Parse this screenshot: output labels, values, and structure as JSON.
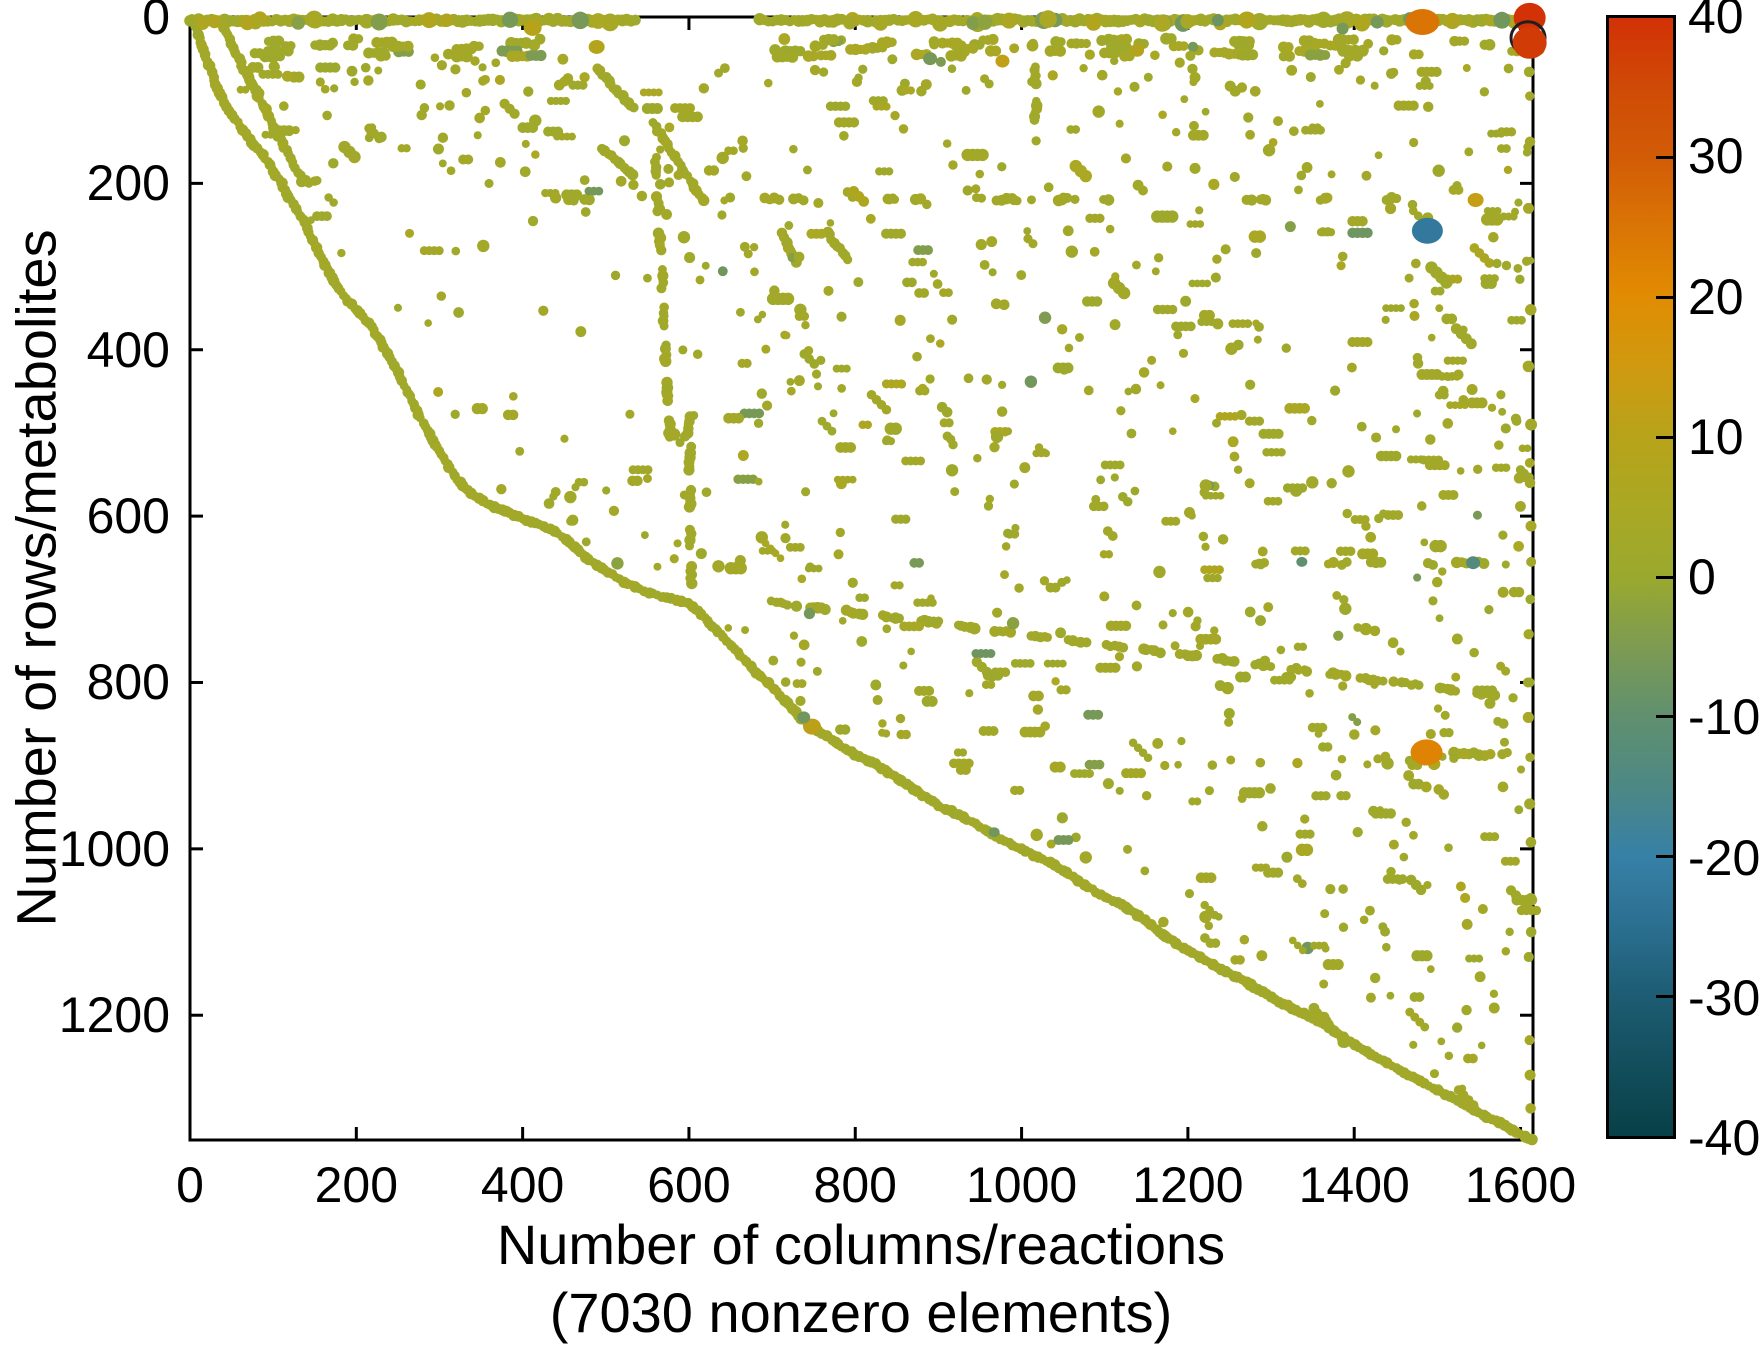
{
  "figure": {
    "background": "#ffffff",
    "axis_color": "#000000"
  },
  "chart_data": {
    "type": "scatter",
    "subtype": "sparse-matrix-spy-plot",
    "title": "",
    "xlabel": "Number of columns/reactions",
    "xlabel_note": "(7030 nonzero elements)",
    "ylabel": "Number of rows/metabolites",
    "nonzero_elements": 7030,
    "xlim": [
      0,
      1615
    ],
    "ylim": [
      0,
      1350
    ],
    "y_inverted": true,
    "grid": false,
    "xticks": [
      0,
      200,
      400,
      600,
      800,
      1000,
      1200,
      1400,
      1600
    ],
    "yticks": [
      0,
      200,
      400,
      600,
      800,
      1000,
      1200
    ],
    "marker_color_default": "#a2ae33",
    "colorbar": {
      "min": -40,
      "max": 40,
      "ticks": [
        40,
        30,
        20,
        10,
        0,
        -10,
        -20,
        -30,
        -40
      ],
      "stops": [
        [
          40,
          "#d33106"
        ],
        [
          35,
          "#cf4a06"
        ],
        [
          30,
          "#d25c06"
        ],
        [
          25,
          "#da7505"
        ],
        [
          20,
          "#e18c02"
        ],
        [
          15,
          "#cf9a10"
        ],
        [
          10,
          "#b7a31a"
        ],
        [
          5,
          "#aaa824"
        ],
        [
          0,
          "#9aa92e"
        ],
        [
          -5,
          "#7d9b52"
        ],
        [
          -10,
          "#60906f"
        ],
        [
          -15,
          "#4d8884"
        ],
        [
          -20,
          "#3780a6"
        ],
        [
          -25,
          "#2b6f90"
        ],
        [
          -30,
          "#1d5c72"
        ],
        [
          -35,
          "#124e5c"
        ],
        [
          -40,
          "#084047"
        ]
      ]
    },
    "main_diagonal_curve": [
      [
        2,
        2
      ],
      [
        6,
        12
      ],
      [
        10,
        22
      ],
      [
        14,
        34
      ],
      [
        18,
        45
      ],
      [
        23,
        58
      ],
      [
        28,
        72
      ],
      [
        33,
        85
      ],
      [
        38,
        96
      ],
      [
        44,
        108
      ],
      [
        50,
        117
      ],
      [
        57,
        127
      ],
      [
        64,
        136
      ],
      [
        72,
        147
      ],
      [
        80,
        158
      ],
      [
        88,
        166
      ],
      [
        96,
        178
      ],
      [
        103,
        190
      ],
      [
        110,
        200
      ],
      [
        118,
        216
      ],
      [
        128,
        230
      ],
      [
        138,
        248
      ],
      [
        148,
        268
      ],
      [
        158,
        288
      ],
      [
        168,
        308
      ],
      [
        178,
        326
      ],
      [
        190,
        342
      ],
      [
        205,
        357
      ],
      [
        218,
        372
      ],
      [
        228,
        388
      ],
      [
        238,
        405
      ],
      [
        250,
        428
      ],
      [
        262,
        452
      ],
      [
        275,
        478
      ],
      [
        288,
        502
      ],
      [
        300,
        522
      ],
      [
        312,
        542
      ],
      [
        325,
        560
      ],
      [
        338,
        572
      ],
      [
        352,
        582
      ],
      [
        366,
        589
      ],
      [
        380,
        594
      ],
      [
        395,
        601
      ],
      [
        410,
        607
      ],
      [
        425,
        612
      ],
      [
        438,
        618
      ],
      [
        452,
        628
      ],
      [
        466,
        640
      ],
      [
        480,
        652
      ],
      [
        494,
        662
      ],
      [
        508,
        670
      ],
      [
        522,
        679
      ],
      [
        536,
        686
      ],
      [
        552,
        692
      ],
      [
        568,
        697
      ],
      [
        585,
        701
      ],
      [
        600,
        705
      ],
      [
        615,
        718
      ],
      [
        635,
        739
      ],
      [
        655,
        760
      ],
      [
        675,
        781
      ],
      [
        695,
        801
      ],
      [
        715,
        822
      ],
      [
        735,
        843
      ],
      [
        750,
        855
      ],
      [
        765,
        864
      ],
      [
        780,
        874
      ],
      [
        795,
        884
      ],
      [
        810,
        891
      ],
      [
        825,
        898
      ],
      [
        840,
        908
      ],
      [
        855,
        918
      ],
      [
        870,
        928
      ],
      [
        885,
        938
      ],
      [
        900,
        948
      ],
      [
        915,
        955
      ],
      [
        930,
        962
      ],
      [
        945,
        970
      ],
      [
        960,
        979
      ],
      [
        975,
        988
      ],
      [
        990,
        996
      ],
      [
        1005,
        1003
      ],
      [
        1020,
        1010
      ],
      [
        1035,
        1017
      ],
      [
        1050,
        1026
      ],
      [
        1065,
        1036
      ],
      [
        1080,
        1046
      ],
      [
        1095,
        1055
      ],
      [
        1110,
        1062
      ],
      [
        1125,
        1070
      ],
      [
        1140,
        1080
      ],
      [
        1155,
        1092
      ],
      [
        1170,
        1103
      ],
      [
        1185,
        1113
      ],
      [
        1200,
        1122
      ],
      [
        1215,
        1131
      ],
      [
        1230,
        1139
      ],
      [
        1245,
        1147
      ],
      [
        1260,
        1155
      ],
      [
        1275,
        1163
      ],
      [
        1290,
        1172
      ],
      [
        1305,
        1181
      ],
      [
        1320,
        1189
      ],
      [
        1335,
        1196
      ],
      [
        1350,
        1203
      ],
      [
        1365,
        1212
      ],
      [
        1380,
        1222
      ],
      [
        1395,
        1232
      ],
      [
        1410,
        1241
      ],
      [
        1425,
        1250
      ],
      [
        1440,
        1258
      ],
      [
        1455,
        1266
      ],
      [
        1470,
        1274
      ],
      [
        1485,
        1282
      ],
      [
        1500,
        1290
      ],
      [
        1515,
        1298
      ],
      [
        1530,
        1306
      ],
      [
        1545,
        1314
      ],
      [
        1560,
        1322
      ],
      [
        1575,
        1330
      ],
      [
        1590,
        1338
      ],
      [
        1605,
        1346
      ],
      [
        1613,
        1350
      ]
    ],
    "structure": {
      "top_band_y": 4,
      "top_band_segments": [
        [
          0,
          538
        ],
        [
          685,
          1612
        ]
      ],
      "second_band_rows": [
        26,
        48
      ],
      "second_band_segments": [
        [
          64,
          425
        ],
        [
          676,
          1612
        ]
      ],
      "diagonal_segments": [
        {
          "x1": 40,
          "y1": 14,
          "x2": 134,
          "y2": 196,
          "style": "solid"
        },
        {
          "x1": 134,
          "y1": 198,
          "x2": 154,
          "y2": 198,
          "style": "solid"
        },
        {
          "x1": 66,
          "y1": 66,
          "x2": 84,
          "y2": 96,
          "style": "solid"
        },
        {
          "x1": 490,
          "y1": 62,
          "x2": 533,
          "y2": 110,
          "style": "solid"
        },
        {
          "x1": 557,
          "y1": 128,
          "x2": 618,
          "y2": 222,
          "style": "solid"
        },
        {
          "x1": 494,
          "y1": 158,
          "x2": 533,
          "y2": 190,
          "style": "solid"
        },
        {
          "x1": 712,
          "y1": 260,
          "x2": 728,
          "y2": 294,
          "style": "solid"
        },
        {
          "x1": 766,
          "y1": 258,
          "x2": 790,
          "y2": 292,
          "style": "solid"
        },
        {
          "x1": 700,
          "y1": 703,
          "x2": 1592,
          "y2": 818,
          "style": "dashed"
        },
        {
          "x1": 1352,
          "y1": 1192,
          "x2": 1390,
          "y2": 1235,
          "style": "solid"
        },
        {
          "x1": 560,
          "y1": 170,
          "x2": 578,
          "y2": 520,
          "style": "dashed"
        },
        {
          "x1": 600,
          "y1": 480,
          "x2": 603,
          "y2": 700,
          "style": "dashed"
        },
        {
          "x1": 1017,
          "y1": 60,
          "x2": 1017,
          "y2": 150,
          "style": "dashed"
        }
      ],
      "aligned_rows": [
        {
          "y": 219,
          "xmin": 400,
          "xmax": 1610,
          "dashes": 26
        },
        {
          "y": 657,
          "xmin": 1280,
          "xmax": 1612,
          "dashes": 8
        },
        {
          "y": 886,
          "xmin": 1500,
          "xmax": 1612,
          "dashes": 6
        }
      ],
      "right_edge_column_x": 1611,
      "right_edge_ys": [
        66,
        95,
        150,
        230,
        352,
        420,
        490,
        560,
        612,
        655,
        700,
        742,
        800,
        842,
        890,
        946,
        992,
        1060,
        1100,
        1130,
        1230,
        1272,
        1312
      ],
      "random_scatter": {
        "seed": 1234,
        "attempts": 1700,
        "dash_fraction": 0.3
      }
    },
    "highlight_points": [
      {
        "x": 1482,
        "y": 6,
        "value": 25,
        "rx": 17,
        "ry": 13
      },
      {
        "x": 1611,
        "y": 1,
        "value": 40,
        "rx": 16,
        "ry": 15
      },
      {
        "x": 1611,
        "y": 31,
        "value": 38,
        "rx": 17,
        "ry": 16,
        "dark_ring": true
      },
      {
        "x": 1271,
        "y": 3,
        "value": 8,
        "rx": 9,
        "ry": 8
      },
      {
        "x": 1386,
        "y": 14,
        "value": -6,
        "rx": 6,
        "ry": 6
      },
      {
        "x": 1236,
        "y": 4,
        "value": -8,
        "rx": 6,
        "ry": 6
      },
      {
        "x": 412,
        "y": 13,
        "value": 10,
        "rx": 9,
        "ry": 8
      },
      {
        "x": 489,
        "y": 36,
        "value": 9,
        "rx": 8,
        "ry": 7
      },
      {
        "x": 890,
        "y": 50,
        "value": -6,
        "rx": 7,
        "ry": 6.5
      },
      {
        "x": 903,
        "y": 54,
        "value": -5,
        "rx": 5,
        "ry": 5
      },
      {
        "x": 977,
        "y": 53,
        "value": 12,
        "rx": 7,
        "ry": 6.5
      },
      {
        "x": 1139,
        "y": 40,
        "value": 9,
        "rx": 7,
        "ry": 6.5
      },
      {
        "x": 1546,
        "y": 220,
        "value": 13,
        "rx": 8,
        "ry": 7
      },
      {
        "x": 1488,
        "y": 257,
        "value": -22,
        "rx": 15.5,
        "ry": 13
      },
      {
        "x": 1337,
        "y": 655,
        "value": -10,
        "rx": 5.5,
        "ry": 5
      },
      {
        "x": 1543,
        "y": 656,
        "value": -13,
        "rx": 7,
        "ry": 6.5
      },
      {
        "x": 1487,
        "y": 884,
        "value": 22,
        "rx": 16,
        "ry": 13
      },
      {
        "x": 748,
        "y": 853,
        "value": 11,
        "rx": 9,
        "ry": 8
      },
      {
        "x": 738,
        "y": 842,
        "value": -7,
        "rx": 6.5,
        "ry": 6
      },
      {
        "x": 967,
        "y": 980,
        "value": -7,
        "rx": 5.5,
        "ry": 5
      }
    ]
  }
}
